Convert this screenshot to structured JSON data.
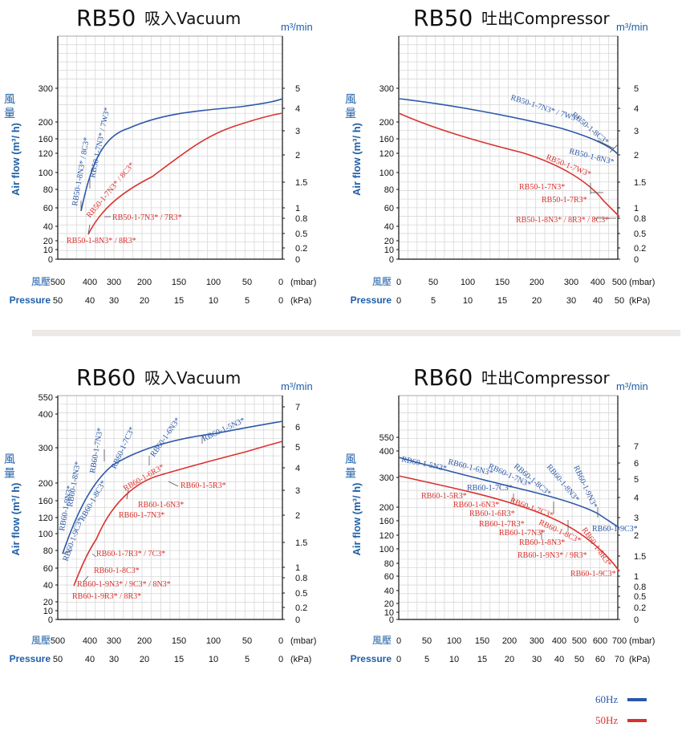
{
  "colors": {
    "hz60": "#2b58a8",
    "hz50": "#d9322e"
  },
  "legend": {
    "hz60": "60Hz",
    "hz50": "50Hz"
  },
  "charts": [
    {
      "title_model": "RB50",
      "title_mode": "吸入Vacuum",
      "unit": "m³/min",
      "ylabel_cn": "風 量",
      "ylabel_en": "Air flow (m³/ h)",
      "yticks": [
        "300",
        "200",
        "160",
        "120",
        "100",
        "80",
        "60",
        "40",
        "20",
        "10",
        "0"
      ],
      "rticks": [
        "5",
        "4",
        "3",
        "2",
        "1.5",
        "1",
        "0.8",
        "0.5",
        "0.2",
        "0"
      ],
      "row1_label": "風壓",
      "row1_ticks": [
        "500",
        "400",
        "300",
        "200",
        "150",
        "100",
        "50",
        "0"
      ],
      "row1_unit": "(mbar)",
      "row2_label": "Pressure",
      "row2_ticks": [
        "50",
        "40",
        "30",
        "20",
        "15",
        "10",
        "5",
        "0"
      ],
      "row2_unit": "(kPa)",
      "model_labels": [
        "RB50-1-8N3* / 8C3*",
        "RB50-1-7N3* / 7W3*",
        "RB50-1-7N3* / 8C3*",
        "RB50-1-7N3* / 7R3*",
        "RB50-1-8N3* / 8R3*"
      ]
    },
    {
      "title_model": "RB50",
      "title_mode": "吐出Compressor",
      "unit": "m³/min",
      "ylabel_cn": "風 量",
      "ylabel_en": "Air flow (m³/ h)",
      "yticks": [
        "300",
        "200",
        "160",
        "120",
        "100",
        "80",
        "60",
        "40",
        "20",
        "10",
        "0"
      ],
      "rticks": [
        "5",
        "4",
        "3",
        "2",
        "1.5",
        "1",
        "0.8",
        "0.5",
        "0.2",
        "0"
      ],
      "row1_label": "風壓",
      "row1_ticks": [
        "0",
        "50",
        "100",
        "150",
        "200",
        "300",
        "400",
        "500"
      ],
      "row1_unit": "(mbar)",
      "row2_label": "Pressure",
      "row2_ticks": [
        "0",
        "5",
        "10",
        "15",
        "20",
        "30",
        "40",
        "50"
      ],
      "row2_unit": "(kPa)",
      "model_labels": [
        "RB50-1-7N3* / 7W3*",
        "RB50-1-8C3*",
        "RB50-1-8N3*",
        "RB50-1-7W3*",
        "RB50-1-7N3*",
        "RB50-1-7R3*",
        "RB50-1-8N3* / 8R3* / 8C3*"
      ]
    },
    {
      "title_model": "RB60",
      "title_mode": "吸入Vacuum",
      "unit": "m³/min",
      "ylabel_cn": "風 量",
      "ylabel_en": "Air flow (m³/ h)",
      "yticks": [
        "550",
        "400",
        "300",
        "200",
        "160",
        "120",
        "100",
        "80",
        "60",
        "40",
        "20",
        "10",
        "0"
      ],
      "rticks": [
        "7",
        "6",
        "5",
        "4",
        "3",
        "2",
        "1.5",
        "1",
        "0.8",
        "0.5",
        "0.2",
        "0"
      ],
      "row1_label": "風壓",
      "row1_ticks": [
        "500",
        "400",
        "300",
        "200",
        "150",
        "100",
        "50",
        "0"
      ],
      "row1_unit": "(mbar)",
      "row2_label": "Pressure",
      "row2_ticks": [
        "50",
        "40",
        "30",
        "20",
        "15",
        "10",
        "5",
        "0"
      ],
      "row2_unit": "(kPa)",
      "model_labels": [
        "RB60-1-9N3*",
        "RB60-1-8N3*",
        "RB60-1-7N3*",
        "RB60-1-7C3*",
        "RB60-1-6N3*",
        "RB60-1-5N3*",
        "RB60-1-8C3*",
        "RB60-1-9C3*",
        "RB60-1-6R3*",
        "RB60-1-5R3*",
        "RB60-1-6N3*",
        "RB60-1-7N3*",
        "RB60-1-7R3* / 7C3*",
        "RB60-1-8C3*",
        "RB60-1-9N3* / 9C3* / 8N3*",
        "RB60-1-9R3* / 8R3*"
      ]
    },
    {
      "title_model": "RB60",
      "title_mode": "吐出Compressor",
      "unit": "m³/min",
      "ylabel_cn": "風 量",
      "ylabel_en": "Air flow (m³/ h)",
      "yticks": [
        "550",
        "400",
        "300",
        "200",
        "160",
        "120",
        "100",
        "80",
        "60",
        "40",
        "20",
        "10",
        "0"
      ],
      "rticks": [
        "7",
        "6",
        "5",
        "4",
        "3",
        "2",
        "1.5",
        "1",
        "0.8",
        "0.5",
        "0.2",
        "0"
      ],
      "row1_label": "風壓",
      "row1_ticks": [
        "0",
        "50",
        "100",
        "150",
        "200",
        "300",
        "400",
        "500",
        "600",
        "700"
      ],
      "row1_unit": "(mbar)",
      "row2_label": "Pressure",
      "row2_ticks": [
        "0",
        "5",
        "10",
        "15",
        "20",
        "30",
        "40",
        "50",
        "60",
        "70"
      ],
      "row2_unit": "(kPa)",
      "model_labels": [
        "RB60-1-5N3*",
        "RB60-1-6N3*",
        "RB60-1-7N3*",
        "RB60-1-8C3*",
        "RB60-1-8N3*",
        "RB60-1-9N3*",
        "RB60-1-7C3*",
        "RB60-1-9C3*",
        "RB60-1-5R3*",
        "RB60-1-6N3*",
        "RB60-1-6R3*",
        "RB60-1-7R3*",
        "RB60-1-7N3*",
        "RB60-1-8C3*",
        "RB60-1-7C3*",
        "RB60-1-8R3*",
        "RB60-1-8N3*",
        "RB60-1-9N3* / 9R3*",
        "RB60-1-9C3*"
      ]
    }
  ],
  "chart_data": [
    {
      "type": "line",
      "title": "RB50 吸入Vacuum",
      "xlabel": "風壓 / Pressure (mbar)",
      "ylabel": "Air flow (m³/ h)",
      "xlim": [
        500,
        0
      ],
      "series": [
        {
          "name": "60Hz",
          "x": [
            400,
            350,
            300,
            250,
            200,
            150,
            100,
            50,
            0
          ],
          "y": [
            60,
            110,
            150,
            175,
            200,
            220,
            235,
            248,
            262
          ]
        },
        {
          "name": "50Hz",
          "x": [
            420,
            380,
            320,
            250,
            200,
            150,
            100,
            50,
            0
          ],
          "y": [
            30,
            50,
            75,
            100,
            125,
            160,
            190,
            205,
            215
          ]
        }
      ]
    },
    {
      "type": "line",
      "title": "RB50 吐出Compressor",
      "xlabel": "風壓 / Pressure (mbar)",
      "ylabel": "Air flow (m³/ h)",
      "xlim": [
        0,
        500
      ],
      "series": [
        {
          "name": "60Hz",
          "x": [
            0,
            100,
            200,
            300,
            400,
            450
          ],
          "y": [
            262,
            240,
            215,
            185,
            155,
            140
          ]
        },
        {
          "name": "50Hz",
          "x": [
            0,
            100,
            150,
            200,
            300,
            350,
            400,
            480
          ],
          "y": [
            215,
            185,
            170,
            155,
            130,
            110,
            95,
            55
          ]
        }
      ]
    },
    {
      "type": "line",
      "title": "RB60 吸入Vacuum",
      "xlabel": "風壓 / Pressure (mbar)",
      "ylabel": "Air flow (m³/ h)",
      "xlim": [
        500,
        0
      ],
      "series": [
        {
          "name": "60Hz",
          "x": [
            470,
            400,
            350,
            300,
            200,
            100,
            0
          ],
          "y": [
            80,
            110,
            150,
            185,
            260,
            320,
            380
          ]
        },
        {
          "name": "50Hz",
          "x": [
            450,
            400,
            320,
            250,
            200,
            100,
            0
          ],
          "y": [
            40,
            70,
            110,
            170,
            240,
            280,
            310
          ]
        }
      ]
    },
    {
      "type": "line",
      "title": "RB60 吐出Compressor",
      "xlabel": "風壓 / Pressure (mbar)",
      "ylabel": "Air flow (m³/ h)",
      "xlim": [
        0,
        700
      ],
      "series": [
        {
          "name": "60Hz",
          "x": [
            0,
            100,
            200,
            300,
            400,
            500,
            600,
            650
          ],
          "y": [
            380,
            350,
            330,
            300,
            270,
            235,
            205,
            170
          ]
        },
        {
          "name": "50Hz",
          "x": [
            0,
            100,
            200,
            300,
            400,
            500,
            600,
            680
          ],
          "y": [
            310,
            280,
            255,
            225,
            200,
            170,
            130,
            90
          ]
        }
      ]
    }
  ]
}
